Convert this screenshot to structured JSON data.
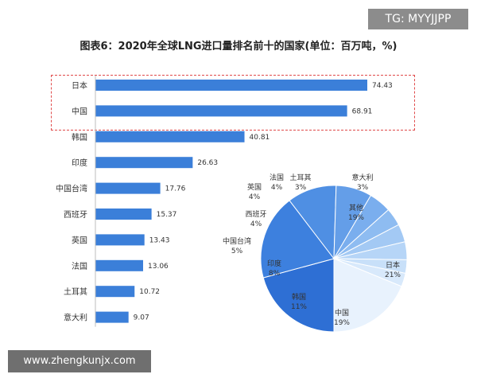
{
  "badge": "TG: MYYJJPP",
  "footer_url": "www.zhengkunjx.com",
  "colors": {
    "bar": "#3b7fd9",
    "highlight": "#e04a4a"
  },
  "chart_data": [
    {
      "type": "bar",
      "title": "图表6：2020年全球LNG进口量排名前十的国家(单位：百万吨，%)",
      "categories": [
        "日本",
        "中国",
        "韩国",
        "印度",
        "中国台湾",
        "西班牙",
        "英国",
        "法国",
        "土耳其",
        "意大利"
      ],
      "values": [
        74.43,
        68.91,
        40.81,
        26.63,
        17.76,
        15.37,
        13.43,
        13.06,
        10.72,
        9.07
      ],
      "value_labels": [
        "74.43",
        "68.91",
        "40.81",
        "26.63",
        "17.76",
        "15.37",
        "13.43",
        "13.06",
        "10.72",
        "9.07"
      ],
      "orientation": "horizontal",
      "highlighted": [
        "日本",
        "中国"
      ]
    },
    {
      "type": "pie",
      "slices": [
        {
          "label": "日本",
          "value": 21,
          "text": "21%",
          "color": "#2e6fd4"
        },
        {
          "label": "中国",
          "value": 19,
          "text": "19%",
          "color": "#3d80de"
        },
        {
          "label": "韩国",
          "value": 11,
          "text": "11%",
          "color": "#4f8fe3"
        },
        {
          "label": "印度",
          "value": 8,
          "text": "8%",
          "color": "#649ee8"
        },
        {
          "label": "中国台湾",
          "value": 5,
          "text": "5%",
          "color": "#7aaeee"
        },
        {
          "label": "西班牙",
          "value": 4,
          "text": "4%",
          "color": "#8ebcf1"
        },
        {
          "label": "英国",
          "value": 4,
          "text": "4%",
          "color": "#a3c9f4"
        },
        {
          "label": "法国",
          "value": 4,
          "text": "4%",
          "color": "#b6d5f7"
        },
        {
          "label": "土耳其",
          "value": 3,
          "text": "3%",
          "color": "#c8e0f9"
        },
        {
          "label": "意大利",
          "value": 3,
          "text": "3%",
          "color": "#d8e9fb"
        },
        {
          "label": "其他",
          "value": 19,
          "text": "19%",
          "color": "#e8f2fd"
        }
      ]
    }
  ]
}
